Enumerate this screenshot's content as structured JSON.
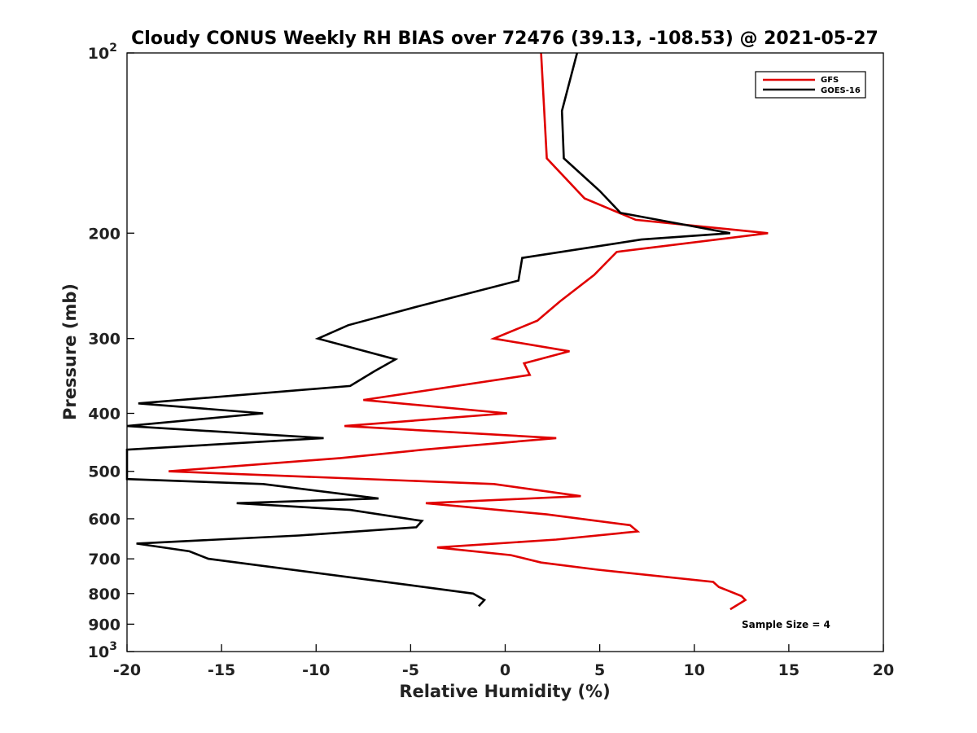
{
  "chart_data": {
    "type": "line",
    "title": "Cloudy CONUS Weekly RH BIAS over 72476 (39.13, -108.53) @ 2021-05-27",
    "xlabel": "Relative Humidity (%)",
    "ylabel": "Pressure (mb)",
    "xlim": [
      -20,
      20
    ],
    "ylim": [
      1000,
      100
    ],
    "y_scale": "log",
    "x_ticks": [
      "-20",
      "-15",
      "-10",
      "-5",
      "0",
      "5",
      "10",
      "15",
      "20"
    ],
    "y_ticks": [
      {
        "value": 100,
        "label": "10",
        "exp": "2"
      },
      {
        "value": 200,
        "label": "200"
      },
      {
        "value": 300,
        "label": "300"
      },
      {
        "value": 400,
        "label": "400"
      },
      {
        "value": 500,
        "label": "500"
      },
      {
        "value": 600,
        "label": "600"
      },
      {
        "value": 700,
        "label": "700"
      },
      {
        "value": 800,
        "label": "800"
      },
      {
        "value": 900,
        "label": "900"
      },
      {
        "value": 1000,
        "label": "10",
        "exp": "3"
      }
    ],
    "grid": false,
    "legend_position": "top-right",
    "annotation": "Sample Size = 4",
    "series": [
      {
        "name": "GFS",
        "color": "#e00000",
        "points": [
          [
            1.9,
            100
          ],
          [
            2.2,
            150
          ],
          [
            4.2,
            175
          ],
          [
            6.9,
            190
          ],
          [
            13.9,
            200
          ],
          [
            5.9,
            215
          ],
          [
            4.7,
            235
          ],
          [
            2.9,
            260
          ],
          [
            1.7,
            280
          ],
          [
            -0.6,
            300
          ],
          [
            3.4,
            315
          ],
          [
            1.0,
            330
          ],
          [
            1.3,
            345
          ],
          [
            -7.5,
            380
          ],
          [
            0.1,
            400
          ],
          [
            -8.5,
            420
          ],
          [
            2.7,
            440
          ],
          [
            -4.3,
            460
          ],
          [
            -8.7,
            475
          ],
          [
            -17.8,
            500
          ],
          [
            -0.6,
            525
          ],
          [
            4.0,
            550
          ],
          [
            -4.2,
            565
          ],
          [
            2.2,
            590
          ],
          [
            6.6,
            615
          ],
          [
            7.0,
            630
          ],
          [
            2.7,
            650
          ],
          [
            -3.6,
            670
          ],
          [
            0.3,
            690
          ],
          [
            1.9,
            710
          ],
          [
            4.9,
            730
          ],
          [
            11.0,
            765
          ],
          [
            11.3,
            780
          ],
          [
            12.5,
            808
          ],
          [
            12.7,
            820
          ],
          [
            11.9,
            850
          ]
        ]
      },
      {
        "name": "GOES-16",
        "color": "#000000",
        "points": [
          [
            3.8,
            100
          ],
          [
            3.0,
            125
          ],
          [
            3.1,
            150
          ],
          [
            5.0,
            170
          ],
          [
            6.1,
            185
          ],
          [
            11.9,
            200
          ],
          [
            7.2,
            205
          ],
          [
            0.9,
            220
          ],
          [
            0.7,
            240
          ],
          [
            -4.6,
            265
          ],
          [
            -8.3,
            285
          ],
          [
            -9.9,
            300
          ],
          [
            -5.8,
            325
          ],
          [
            -6.9,
            340
          ],
          [
            -8.2,
            360
          ],
          [
            -19.4,
            385
          ],
          [
            -12.8,
            400
          ],
          [
            -20.0,
            420
          ],
          [
            -9.6,
            440
          ],
          [
            -20.0,
            460
          ],
          [
            -20.0,
            515
          ],
          [
            -12.8,
            525
          ],
          [
            -6.7,
            555
          ],
          [
            -14.2,
            565
          ],
          [
            -8.2,
            580
          ],
          [
            -4.4,
            605
          ],
          [
            -4.7,
            620
          ],
          [
            -10.9,
            640
          ],
          [
            -19.5,
            660
          ],
          [
            -16.7,
            680
          ],
          [
            -15.7,
            700
          ],
          [
            -5.0,
            775
          ],
          [
            -1.7,
            800
          ],
          [
            -1.1,
            820
          ],
          [
            -1.4,
            840
          ]
        ]
      }
    ]
  }
}
